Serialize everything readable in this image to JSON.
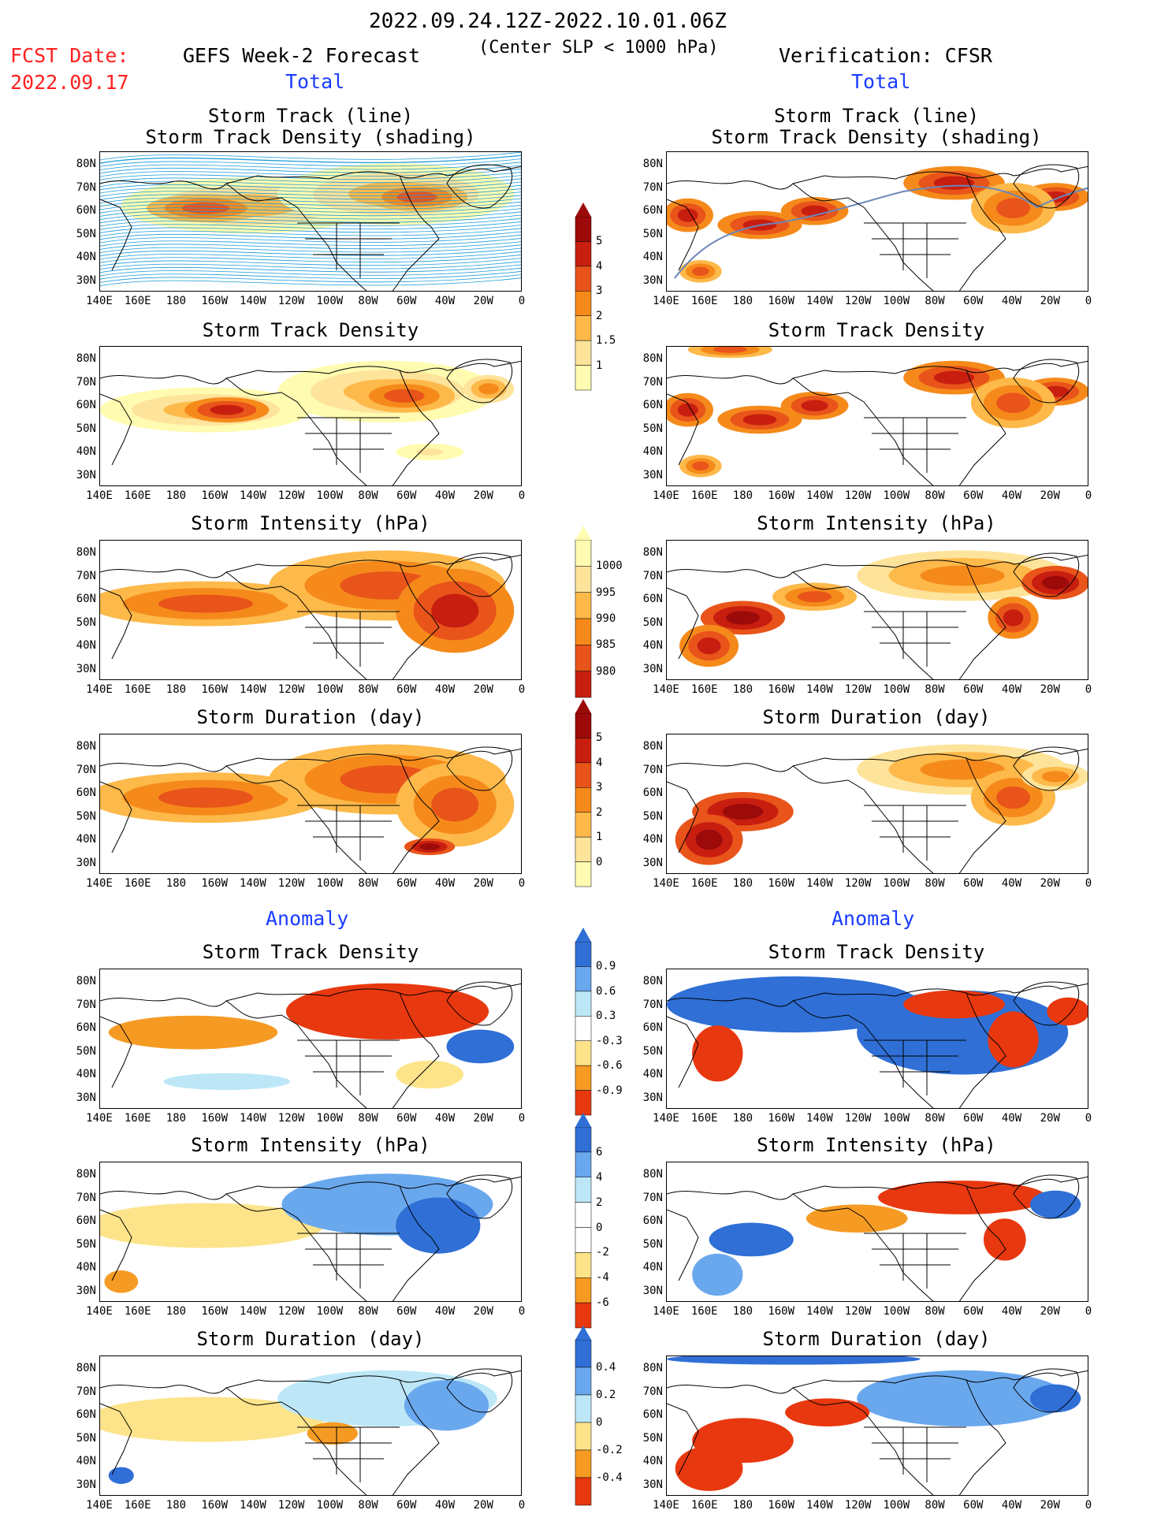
{
  "header": {
    "date_range": "2022.09.24.12Z-2022.10.01.06Z",
    "fcst_label": "FCST Date:",
    "fcst_date": "2022.09.17",
    "left_heading": "GEFS Week-2 Forecast",
    "center_note": "(Center SLP < 1000 hPa)",
    "right_heading": "Verification: CFSR",
    "total_label": "Total",
    "anomaly_label": "Anomaly"
  },
  "panel_titles": {
    "track_line": "Storm Track (line)",
    "track_shade": "Storm Track Density (shading)",
    "density": "Storm Track Density",
    "intensity": "Storm Intensity (hPa)",
    "duration": "Storm Duration (day)"
  },
  "axes": {
    "lat_ticks": [
      "80N",
      "70N",
      "60N",
      "50N",
      "40N",
      "30N"
    ],
    "lon_ticks": [
      "140E",
      "160E",
      "180",
      "160W",
      "140W",
      "120W",
      "100W",
      "80W",
      "60W",
      "40W",
      "20W",
      "0"
    ]
  },
  "colorbars": {
    "total_density": [
      "5",
      "4",
      "3",
      "2",
      "1.5",
      "1"
    ],
    "intensity": [
      "1000",
      "995",
      "990",
      "985",
      "980"
    ],
    "duration": [
      "5",
      "4",
      "3",
      "2",
      "1",
      "0"
    ],
    "anom_density": [
      "0.9",
      "0.6",
      "0.3",
      "-0.3",
      "-0.6",
      "-0.9"
    ],
    "anom_intensity": [
      "6",
      "4",
      "2",
      "0",
      "-2",
      "-4",
      "-6"
    ],
    "anom_duration": [
      "0.4",
      "0.2",
      "0",
      "-0.2",
      "-0.4"
    ]
  },
  "colors": {
    "scale_warm": [
      "#fffbb0",
      "#fee39a",
      "#fdb94a",
      "#f58a1b",
      "#e8541a",
      "#c81e10",
      "#9c0a0a"
    ],
    "scale_anom": [
      "#2f6fd6",
      "#6aa8ee",
      "#bde7f7",
      "#ffffff",
      "#fde48a",
      "#f59b24",
      "#e8380f"
    ],
    "track_line": "#1a9bd8"
  },
  "panels": [
    {
      "id": "fc-track",
      "column": "left",
      "row": 1,
      "field": "track density with tracks"
    },
    {
      "id": "ob-track",
      "column": "right",
      "row": 1,
      "field": "track density with tracks"
    },
    {
      "id": "fc-density",
      "column": "left",
      "row": 2,
      "field": "density"
    },
    {
      "id": "ob-density",
      "column": "right",
      "row": 2,
      "field": "density"
    },
    {
      "id": "fc-intensity",
      "column": "left",
      "row": 3,
      "field": "intensity"
    },
    {
      "id": "ob-intensity",
      "column": "right",
      "row": 3,
      "field": "intensity"
    },
    {
      "id": "fc-duration",
      "column": "left",
      "row": 4,
      "field": "duration"
    },
    {
      "id": "ob-duration",
      "column": "right",
      "row": 4,
      "field": "duration"
    },
    {
      "id": "fc-anom-density",
      "column": "left",
      "row": 5,
      "field": "density anomaly"
    },
    {
      "id": "ob-anom-density",
      "column": "right",
      "row": 5,
      "field": "density anomaly"
    },
    {
      "id": "fc-anom-intensity",
      "column": "left",
      "row": 6,
      "field": "intensity anomaly"
    },
    {
      "id": "ob-anom-intensity",
      "column": "right",
      "row": 6,
      "field": "intensity anomaly"
    },
    {
      "id": "fc-anom-duration",
      "column": "left",
      "row": 7,
      "field": "duration anomaly"
    },
    {
      "id": "ob-anom-duration",
      "column": "right",
      "row": 7,
      "field": "duration anomaly"
    }
  ]
}
